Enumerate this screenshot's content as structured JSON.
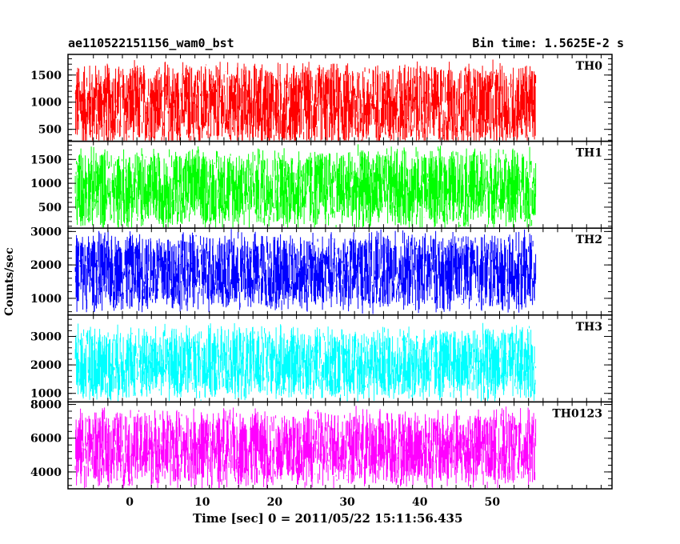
{
  "chart_data": {
    "type": "line",
    "title": "ae110522151156_wam0_bst",
    "subtitle": "Bin time: 1.5625E-2 s",
    "xlabel": "Time [sec] 0 = 2011/05/22 15:11:56.435",
    "ylabel": "Counts/sec",
    "xlim": [
      -8.5,
      66.5
    ],
    "xticks": [
      0,
      10,
      20,
      30,
      40,
      50
    ],
    "data_xrange": [
      -7.5,
      56
    ],
    "grid": false,
    "panels": [
      {
        "name": "TH0",
        "color": "#ff0000",
        "ylim": [
          280,
          1880
        ],
        "yticks": [
          500,
          1000,
          1500
        ],
        "typical_range": [
          200,
          1750
        ],
        "mean": 950
      },
      {
        "name": "TH1",
        "color": "#00ff00",
        "ylim": [
          60,
          1880
        ],
        "yticks": [
          500,
          1000,
          1500
        ],
        "typical_range": [
          120,
          1800
        ],
        "mean": 900
      },
      {
        "name": "TH2",
        "color": "#0000ff",
        "ylim": [
          500,
          3100
        ],
        "yticks": [
          1000,
          2000,
          3000
        ],
        "typical_range": [
          650,
          3000
        ],
        "mean": 1800
      },
      {
        "name": "TH3",
        "color": "#00ffff",
        "ylim": [
          700,
          3750
        ],
        "yticks": [
          1000,
          2000,
          3000
        ],
        "typical_range": [
          900,
          3500
        ],
        "mean": 2050
      },
      {
        "name": "TH0123",
        "color": "#ff00ff",
        "ylim": [
          3000,
          8150
        ],
        "yticks": [
          4000,
          6000,
          8000
        ],
        "typical_range": [
          3300,
          7900
        ],
        "mean": 5400
      }
    ]
  }
}
